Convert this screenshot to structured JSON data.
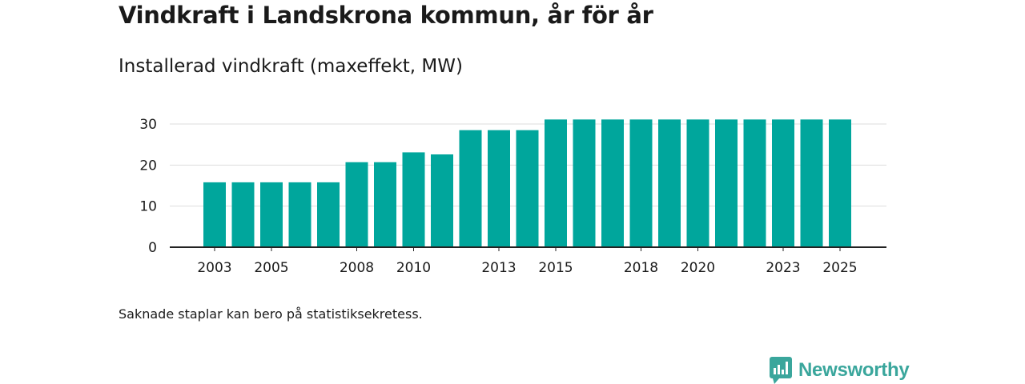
{
  "title": "Vindkraft i Landskrona kommun, år för år",
  "subtitle": "Installerad vindkraft (maxeffekt, MW)",
  "footnote": "Saknade staplar kan bero på statistiksekretess.",
  "brand": {
    "name": "Newsworthy",
    "icon": "newsworthy-logo-icon"
  },
  "colors": {
    "bar": "#00a69c",
    "grid": "#dddddd",
    "axis": "#222222",
    "text": "#1a1a1a",
    "brand": "#3aa69c"
  },
  "chart_data": {
    "type": "bar",
    "title": "Vindkraft i Landskrona kommun, år för år",
    "subtitle": "Installerad vindkraft (maxeffekt, MW)",
    "xlabel": "",
    "ylabel": "MW",
    "categories": [
      "2003",
      "2004",
      "2005",
      "2006",
      "2007",
      "2008",
      "2009",
      "2010",
      "2011",
      "2012",
      "2013",
      "2014",
      "2015",
      "2016",
      "2017",
      "2018",
      "2019",
      "2020",
      "2021",
      "2022",
      "2023",
      "2024",
      "2025"
    ],
    "values": [
      15.8,
      15.8,
      15.8,
      15.8,
      15.8,
      20.7,
      20.7,
      23.1,
      22.6,
      28.5,
      28.5,
      28.5,
      31.1,
      31.1,
      31.1,
      31.1,
      31.1,
      31.1,
      31.1,
      31.1,
      31.1,
      31.1,
      31.1
    ],
    "x_tick_labels": [
      "2003",
      "2005",
      "2008",
      "2010",
      "2013",
      "2015",
      "2018",
      "2020",
      "2023",
      "2025"
    ],
    "y_ticks": [
      0,
      10,
      20,
      30
    ],
    "ylim": [
      0,
      30
    ],
    "grid": true,
    "legend": "none"
  }
}
